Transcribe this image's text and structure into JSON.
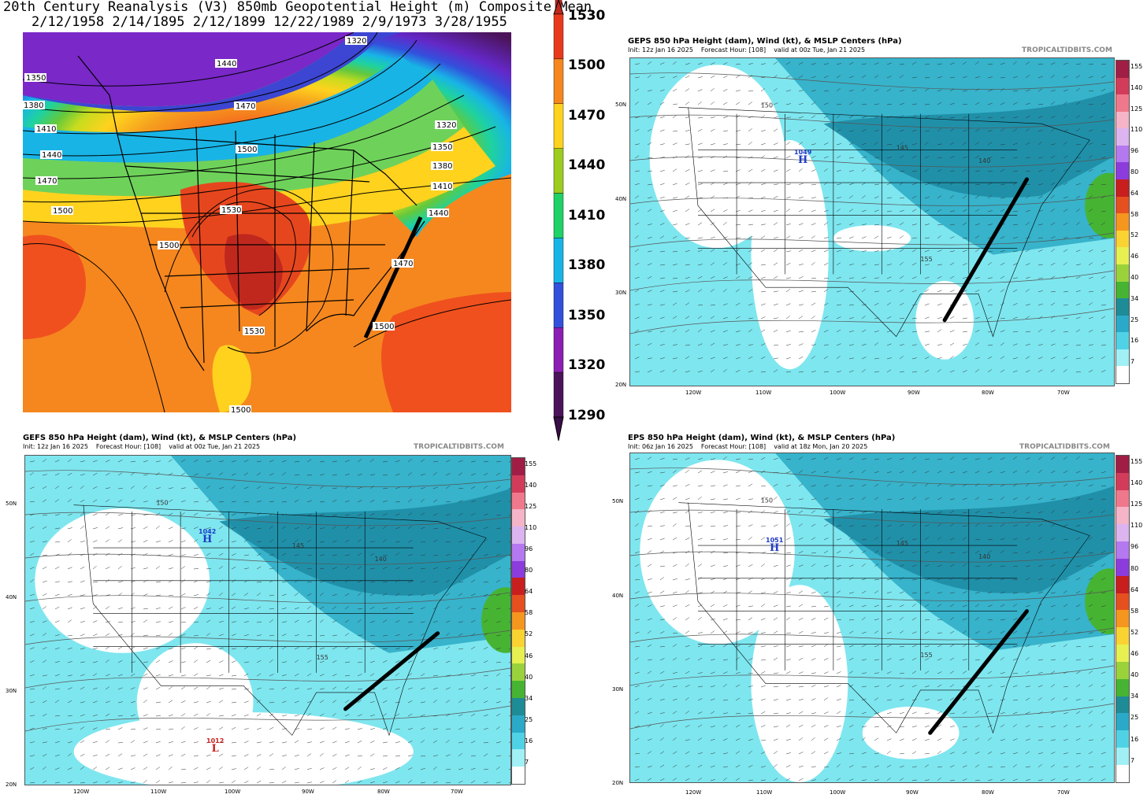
{
  "reanalysis": {
    "title": "20th Century Reanalysis (V3) 850mb Geopotential Height (m) Composite Mean",
    "dates": "2/12/1958 2/14/1895 2/12/1899 12/22/1989 2/9/1973 3/28/1955",
    "contour_labels": [
      "1320",
      "1350",
      "1380",
      "1410",
      "1440",
      "1470",
      "1500",
      "1530"
    ],
    "left_labels": [
      "1350",
      "1380",
      "1410",
      "1440",
      "1470",
      "1500"
    ],
    "right_labels": [
      "1320",
      "1350",
      "1380",
      "1410",
      "1440"
    ],
    "interior_labels": {
      "l1440": "1440",
      "l1470": "1470",
      "l1500a": "1500",
      "l1530a": "1530",
      "l1500b": "1500",
      "l1530b": "1530",
      "l1500c": "1500",
      "l1470b": "1470",
      "l1500d": "1500",
      "l1320top": "1320"
    }
  },
  "colorbar": {
    "labels": [
      "1530",
      "1500",
      "1470",
      "1440",
      "1410",
      "1380",
      "1350",
      "1320",
      "1290"
    ],
    "colors": [
      "#e8391c",
      "#f5871e",
      "#ffd21e",
      "#9ccc1e",
      "#1ed266",
      "#18b4e6",
      "#3250dc",
      "#8c1eb4",
      "#4b145a"
    ]
  },
  "panels": {
    "geps": {
      "title": "GEPS 850 hPa Height (dam), Wind (kt), & MSLP Centers (hPa)",
      "init": "Init: 12z Jan 16 2025",
      "fhour": "Forecast Hour: [108]",
      "valid": "valid at 00z Tue, Jan 21 2025",
      "source": "TROPICALTIDBITS.COM",
      "high_value": "1049",
      "high_letter": "H"
    },
    "gefs": {
      "title": "GEFS 850 hPa Height (dam), Wind (kt), & MSLP Centers (hPa)",
      "init": "Init: 12z Jan 16 2025",
      "fhour": "Forecast Hour: [108]",
      "valid": "valid at 00z Tue, Jan 21 2025",
      "source": "TROPICALTIDBITS.COM",
      "high_value": "1042",
      "high_letter": "H",
      "low_value": "1012",
      "low_letter": "L"
    },
    "eps": {
      "title": "EPS 850 hPa Height (dam), Wind (kt), & MSLP Centers (hPa)",
      "init": "Init: 06z Jan 16 2025",
      "fhour": "Forecast Hour: [108]",
      "valid": "valid at 18z Mon, Jan 20 2025",
      "source": "TROPICALTIDBITS.COM",
      "high_value": "1051",
      "high_letter": "H"
    }
  },
  "axes": {
    "lat": [
      "50N",
      "40N",
      "30N",
      "20N"
    ],
    "lon": [
      "120W",
      "110W",
      "100W",
      "90W",
      "80W",
      "70W"
    ]
  },
  "wind_scale": {
    "labels": [
      "155",
      "140",
      "125",
      "110",
      "96",
      "80",
      "64",
      "58",
      "52",
      "46",
      "40",
      "34",
      "25",
      "16",
      "7"
    ],
    "colors": [
      "#a01e46",
      "#d23c5a",
      "#f0788c",
      "#f5b4c8",
      "#dcb4f0",
      "#b478f0",
      "#8c3cdc",
      "#c81e1e",
      "#e6501e",
      "#f5961e",
      "#fad232",
      "#e6f050",
      "#9ad23c",
      "#46b432",
      "#1e8c96",
      "#2aaac8",
      "#50d2e6",
      "#a0f0f5",
      "#ffffff"
    ]
  },
  "contour_values": [
    "145",
    "150",
    "155",
    "140"
  ]
}
